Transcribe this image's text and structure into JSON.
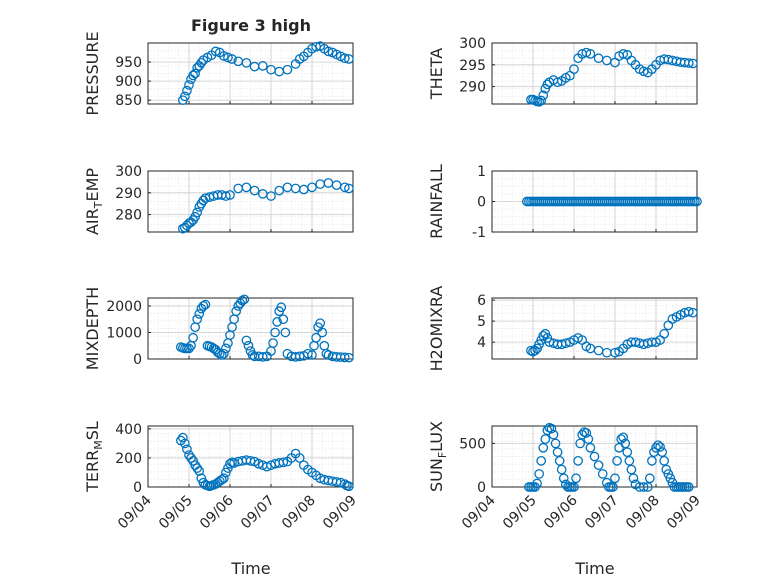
{
  "figure": {
    "title": "Figure 3 high",
    "xlabel": "Time",
    "x_tick_labels": [
      "09/04",
      "09/05",
      "09/06",
      "09/07",
      "09/08",
      "09/09"
    ],
    "marker_color": "#0072BD"
  },
  "chart_data": [
    {
      "type": "scatter",
      "name": "pressure",
      "ylabel": "PRESSURE",
      "ylim": [
        840,
        1000
      ],
      "yticks": [
        850,
        900,
        950
      ],
      "grid": true,
      "x": [
        0.85,
        0.9,
        0.95,
        1.0,
        1.05,
        1.1,
        1.15,
        1.2,
        1.25,
        1.3,
        1.35,
        1.45,
        1.55,
        1.65,
        1.75,
        1.85,
        1.95,
        2.05,
        2.2,
        2.4,
        2.6,
        2.8,
        3.0,
        3.2,
        3.4,
        3.6,
        3.7,
        3.8,
        3.9,
        4.0,
        4.1,
        4.2,
        4.3,
        4.4,
        4.5,
        4.6,
        4.7,
        4.8,
        4.9
      ],
      "y": [
        850,
        860,
        875,
        890,
        905,
        915,
        920,
        935,
        940,
        948,
        955,
        962,
        968,
        978,
        975,
        966,
        962,
        958,
        952,
        948,
        938,
        940,
        930,
        925,
        930,
        945,
        958,
        965,
        975,
        985,
        990,
        992,
        985,
        978,
        975,
        970,
        965,
        960,
        958
      ]
    },
    {
      "type": "scatter",
      "name": "theta",
      "ylabel": "THETA",
      "ylim": [
        286,
        300
      ],
      "yticks": [
        290,
        295,
        300
      ],
      "grid": true,
      "x": [
        0.95,
        1.0,
        1.05,
        1.1,
        1.15,
        1.2,
        1.25,
        1.3,
        1.35,
        1.4,
        1.5,
        1.6,
        1.7,
        1.8,
        1.9,
        2.0,
        2.1,
        2.2,
        2.3,
        2.4,
        2.6,
        2.8,
        3.0,
        3.1,
        3.2,
        3.3,
        3.4,
        3.5,
        3.6,
        3.7,
        3.8,
        3.9,
        4.0,
        4.1,
        4.2,
        4.3,
        4.4,
        4.5,
        4.6,
        4.7,
        4.8,
        4.9
      ],
      "y": [
        287,
        287,
        286.8,
        286.6,
        286.5,
        286.8,
        288,
        289.5,
        290.5,
        291,
        291.5,
        291,
        291.3,
        292,
        292.5,
        294,
        296.5,
        297.5,
        297.8,
        297.5,
        296.5,
        296,
        295.5,
        297,
        297.5,
        297.3,
        296,
        295,
        294,
        293.5,
        293.2,
        294,
        295,
        296,
        296.3,
        296.2,
        296,
        295.8,
        295.6,
        295.5,
        295.4,
        295.3
      ]
    },
    {
      "type": "scatter",
      "name": "air-temp",
      "ylabel": "AIR_TEMP",
      "ylim": [
        272,
        300
      ],
      "yticks": [
        280,
        290,
        300
      ],
      "grid": true,
      "x": [
        0.85,
        0.9,
        0.95,
        1.0,
        1.05,
        1.1,
        1.15,
        1.2,
        1.25,
        1.3,
        1.35,
        1.4,
        1.5,
        1.6,
        1.7,
        1.8,
        1.9,
        2.0,
        2.2,
        2.4,
        2.6,
        2.8,
        3.0,
        3.2,
        3.4,
        3.6,
        3.8,
        4.0,
        4.2,
        4.4,
        4.6,
        4.8,
        4.9
      ],
      "y": [
        273.5,
        274,
        275,
        276,
        276.5,
        277.5,
        279,
        281,
        283.5,
        285,
        286.5,
        287.5,
        288,
        288.5,
        289,
        289,
        288.5,
        289,
        292,
        292.5,
        291,
        289.5,
        288.5,
        291,
        292.5,
        292,
        291.5,
        292.5,
        294,
        294.5,
        293.5,
        292.5,
        292
      ]
    },
    {
      "type": "scatter",
      "name": "rainfall",
      "ylabel": "RAINFALL",
      "ylim": [
        -1,
        1
      ],
      "yticks": [
        -1,
        0,
        1
      ],
      "grid": true,
      "x": [
        0.85,
        0.9,
        0.95,
        1.0,
        1.05,
        1.1,
        1.15,
        1.2,
        1.25,
        1.3,
        1.35,
        1.4,
        1.45,
        1.5,
        1.55,
        1.6,
        1.65,
        1.7,
        1.75,
        1.8,
        1.85,
        1.9,
        1.95,
        2.0,
        2.05,
        2.1,
        2.15,
        2.2,
        2.25,
        2.3,
        2.35,
        2.4,
        2.45,
        2.5,
        2.55,
        2.6,
        2.65,
        2.7,
        2.75,
        2.8,
        2.85,
        2.9,
        2.95,
        3.0,
        3.05,
        3.1,
        3.15,
        3.2,
        3.25,
        3.3,
        3.35,
        3.4,
        3.45,
        3.5,
        3.55,
        3.6,
        3.65,
        3.7,
        3.75,
        3.8,
        3.85,
        3.9,
        3.95,
        4.0,
        4.05,
        4.1,
        4.15,
        4.2,
        4.25,
        4.3,
        4.35,
        4.4,
        4.45,
        4.5,
        4.55,
        4.6,
        4.65,
        4.7,
        4.75,
        4.8,
        4.85,
        4.9,
        4.95,
        5.0
      ],
      "y": [
        0,
        0,
        0,
        0,
        0,
        0,
        0,
        0,
        0,
        0,
        0,
        0,
        0,
        0,
        0,
        0,
        0,
        0,
        0,
        0,
        0,
        0,
        0,
        0,
        0,
        0,
        0,
        0,
        0,
        0,
        0,
        0,
        0,
        0,
        0,
        0,
        0,
        0,
        0,
        0,
        0,
        0,
        0,
        0,
        0,
        0,
        0,
        0,
        0,
        0,
        0,
        0,
        0,
        0,
        0,
        0,
        0,
        0,
        0,
        0,
        0,
        0,
        0,
        0,
        0,
        0,
        0,
        0,
        0,
        0,
        0,
        0,
        0,
        0,
        0,
        0,
        0,
        0,
        0,
        0,
        0,
        0,
        0,
        0
      ]
    },
    {
      "type": "scatter",
      "name": "mixdepth",
      "ylabel": "MIXDEPTH",
      "ylim": [
        0,
        2300
      ],
      "yticks": [
        0,
        1000,
        2000
      ],
      "grid": true,
      "x": [
        0.8,
        0.85,
        0.9,
        0.95,
        1.0,
        1.05,
        1.1,
        1.15,
        1.2,
        1.25,
        1.3,
        1.35,
        1.4,
        1.45,
        1.5,
        1.55,
        1.6,
        1.65,
        1.7,
        1.75,
        1.8,
        1.85,
        1.9,
        1.95,
        2.0,
        2.05,
        2.1,
        2.15,
        2.2,
        2.25,
        2.3,
        2.35,
        2.4,
        2.45,
        2.5,
        2.55,
        2.6,
        2.7,
        2.8,
        2.9,
        3.0,
        3.05,
        3.1,
        3.15,
        3.2,
        3.25,
        3.3,
        3.35,
        3.4,
        3.5,
        3.6,
        3.7,
        3.8,
        3.9,
        4.0,
        4.05,
        4.1,
        4.15,
        4.2,
        4.25,
        4.3,
        4.35,
        4.4,
        4.5,
        4.6,
        4.7,
        4.8,
        4.9
      ],
      "y": [
        450,
        420,
        400,
        400,
        400,
        500,
        800,
        1200,
        1500,
        1700,
        1900,
        2000,
        2050,
        500,
        480,
        450,
        400,
        350,
        250,
        200,
        150,
        200,
        400,
        600,
        900,
        1200,
        1500,
        1800,
        2000,
        2100,
        2200,
        2250,
        700,
        500,
        300,
        150,
        100,
        100,
        80,
        100,
        300,
        600,
        1000,
        1400,
        1800,
        1950,
        1500,
        1000,
        200,
        100,
        80,
        100,
        120,
        200,
        150,
        500,
        800,
        1200,
        1350,
        1000,
        500,
        200,
        150,
        100,
        80,
        70,
        60,
        50
      ]
    },
    {
      "type": "scatter",
      "name": "h2omixra",
      "ylabel": "H2OMIXRA",
      "ylim": [
        3.2,
        6.1
      ],
      "yticks": [
        4,
        5,
        6
      ],
      "grid": true,
      "x": [
        0.95,
        1.0,
        1.05,
        1.1,
        1.15,
        1.2,
        1.25,
        1.3,
        1.35,
        1.4,
        1.5,
        1.6,
        1.7,
        1.8,
        1.9,
        2.0,
        2.1,
        2.2,
        2.3,
        2.4,
        2.6,
        2.8,
        3.0,
        3.1,
        3.2,
        3.3,
        3.4,
        3.5,
        3.6,
        3.7,
        3.8,
        3.9,
        4.0,
        4.1,
        4.2,
        4.3,
        4.4,
        4.5,
        4.6,
        4.7,
        4.8,
        4.9
      ],
      "y": [
        3.6,
        3.55,
        3.6,
        3.7,
        3.9,
        4.1,
        4.3,
        4.4,
        4.2,
        4.0,
        3.95,
        3.9,
        3.9,
        3.95,
        4.0,
        4.1,
        4.2,
        4.1,
        3.8,
        3.7,
        3.6,
        3.5,
        3.5,
        3.55,
        3.7,
        3.9,
        4.0,
        4.0,
        3.95,
        3.9,
        3.95,
        4.0,
        4.0,
        4.1,
        4.4,
        4.8,
        5.1,
        5.2,
        5.3,
        5.4,
        5.45,
        5.4
      ]
    },
    {
      "type": "scatter",
      "name": "terr-msl",
      "ylabel": "TERR_MSL",
      "ylim": [
        0,
        420
      ],
      "yticks": [
        0,
        200,
        400
      ],
      "grid": true,
      "x": [
        0.8,
        0.85,
        0.9,
        0.95,
        1.0,
        1.05,
        1.1,
        1.15,
        1.2,
        1.25,
        1.3,
        1.35,
        1.4,
        1.45,
        1.5,
        1.55,
        1.6,
        1.65,
        1.7,
        1.75,
        1.8,
        1.85,
        1.9,
        1.95,
        2.0,
        2.05,
        2.1,
        2.2,
        2.3,
        2.4,
        2.5,
        2.6,
        2.7,
        2.8,
        2.9,
        3.0,
        3.1,
        3.2,
        3.3,
        3.4,
        3.5,
        3.6,
        3.7,
        3.8,
        3.9,
        4.0,
        4.1,
        4.2,
        4.3,
        4.4,
        4.5,
        4.6,
        4.7,
        4.8,
        4.85,
        4.9
      ],
      "y": [
        320,
        340,
        300,
        260,
        220,
        200,
        180,
        150,
        130,
        110,
        60,
        30,
        15,
        10,
        5,
        10,
        15,
        20,
        30,
        40,
        50,
        60,
        100,
        130,
        160,
        170,
        165,
        175,
        180,
        185,
        180,
        175,
        160,
        150,
        140,
        150,
        160,
        165,
        170,
        175,
        200,
        230,
        200,
        150,
        120,
        100,
        80,
        60,
        50,
        45,
        40,
        35,
        30,
        20,
        10,
        5
      ]
    },
    {
      "type": "scatter",
      "name": "sun-flux",
      "ylabel": "SUN_FLUX",
      "ylim": [
        0,
        700
      ],
      "yticks": [
        0,
        500
      ],
      "grid": true,
      "x": [
        0.9,
        0.95,
        1.0,
        1.05,
        1.1,
        1.15,
        1.2,
        1.25,
        1.3,
        1.35,
        1.4,
        1.45,
        1.5,
        1.55,
        1.6,
        1.65,
        1.7,
        1.75,
        1.8,
        1.85,
        1.9,
        1.95,
        2.0,
        2.05,
        2.1,
        2.15,
        2.2,
        2.25,
        2.3,
        2.35,
        2.4,
        2.5,
        2.6,
        2.7,
        2.8,
        2.85,
        2.9,
        2.95,
        3.0,
        3.05,
        3.1,
        3.15,
        3.2,
        3.25,
        3.3,
        3.35,
        3.4,
        3.45,
        3.5,
        3.6,
        3.7,
        3.8,
        3.85,
        3.9,
        3.95,
        4.0,
        4.05,
        4.1,
        4.15,
        4.2,
        4.25,
        4.3,
        4.35,
        4.4,
        4.45,
        4.5,
        4.55,
        4.6,
        4.65,
        4.7,
        4.75,
        4.8
      ],
      "y": [
        0,
        0,
        0,
        0,
        40,
        150,
        300,
        450,
        550,
        650,
        680,
        670,
        600,
        500,
        400,
        300,
        200,
        100,
        30,
        0,
        0,
        0,
        0,
        100,
        300,
        500,
        600,
        630,
        620,
        550,
        450,
        350,
        250,
        150,
        50,
        0,
        0,
        0,
        100,
        300,
        450,
        550,
        570,
        500,
        400,
        300,
        200,
        100,
        30,
        0,
        0,
        0,
        100,
        300,
        400,
        450,
        480,
        460,
        400,
        300,
        200,
        150,
        100,
        50,
        0,
        0,
        0,
        0,
        0,
        0,
        0,
        0
      ]
    }
  ]
}
